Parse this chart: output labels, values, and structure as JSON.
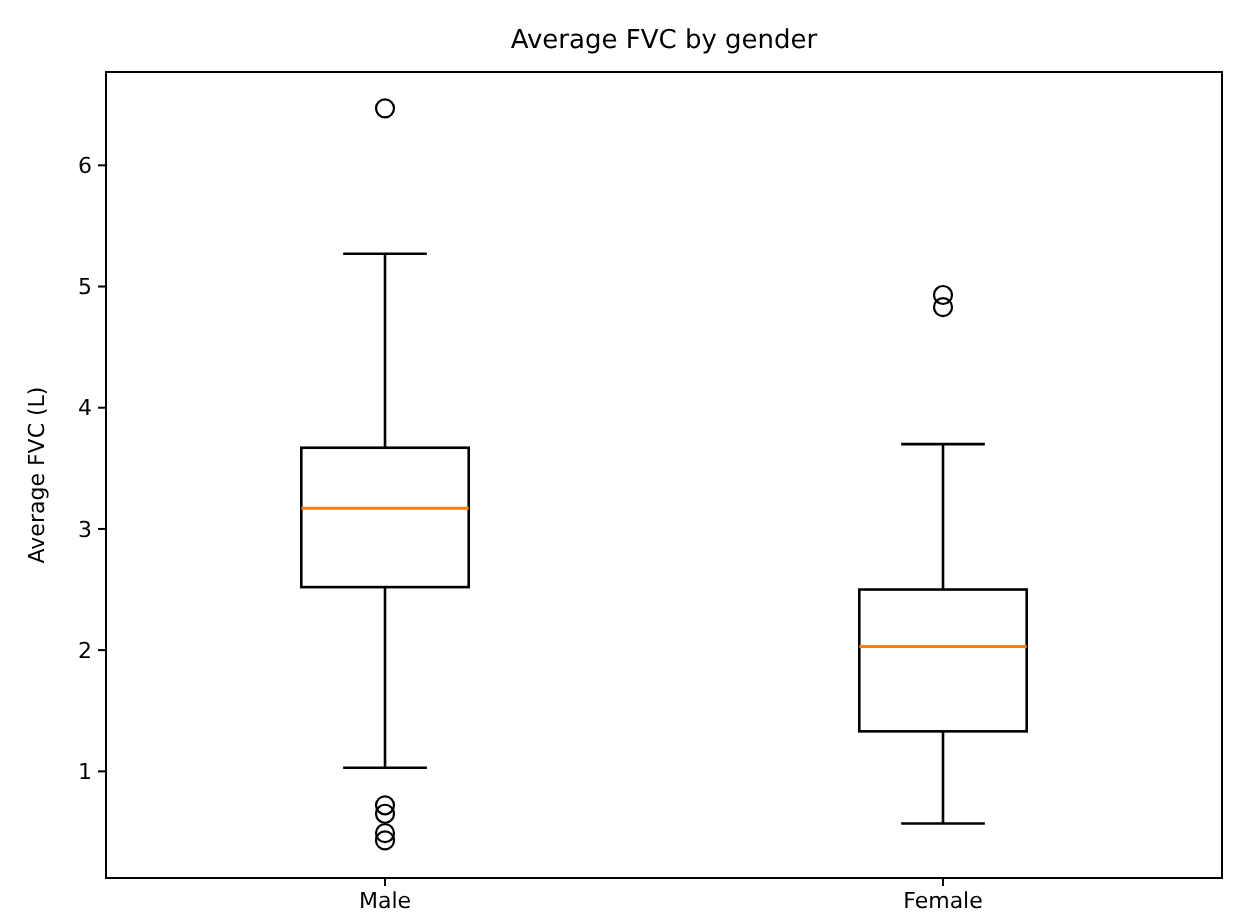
{
  "chart_data": {
    "type": "box",
    "title": "Average FVC by gender",
    "ylabel": "Average FVC (L)",
    "categories": [
      "Male",
      "Female"
    ],
    "boxes": [
      {
        "low": 1.03,
        "q1": 2.52,
        "median": 3.17,
        "q3": 3.67,
        "high": 5.27,
        "outliers": [
          6.47,
          0.72,
          0.65,
          0.49,
          0.43
        ]
      },
      {
        "low": 0.57,
        "q1": 1.33,
        "median": 2.03,
        "q3": 2.5,
        "high": 3.7,
        "outliers": [
          4.93,
          4.83
        ]
      }
    ],
    "color": "#000000",
    "ylim": [
      0.12,
      6.77
    ],
    "yticks": [
      1,
      2,
      3,
      4,
      5,
      6
    ],
    "grid": false
  }
}
